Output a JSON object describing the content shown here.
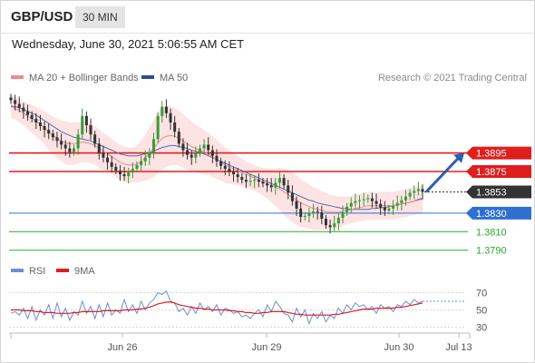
{
  "header": {
    "symbol": "GBP/USD",
    "timeframe": "30 MIN",
    "datetime": "Wednesday, June 30, 2021 5:06:55 AM CET"
  },
  "legend": {
    "bollinger_label": "MA 20 + Bollinger Bands",
    "ma50_label": "MA 50",
    "credit": "Research © 2021 Trading Central"
  },
  "rsi_legend": {
    "rsi_label": "RSI",
    "ma_label": "9MA"
  },
  "colors": {
    "resistance": "#e01e1e",
    "pivot": "#2f6fd1",
    "support": "#2ea82e",
    "current": "#333333",
    "candle_up": "#3a9a3a",
    "candle_down": "#333333",
    "bollinger_fill": "#fde0e0",
    "ma20": "#f08a8a",
    "ma50": "#4a6fb5",
    "arrow": "#2b5fb0",
    "rsi": "#6b8fd6",
    "rsi_ma": "#e01e1e"
  },
  "chart_data": [
    {
      "type": "candlestick",
      "ylim": [
        1.3775,
        1.3975
      ],
      "x_ticks": [
        "Jun 26",
        "Jun 29",
        "Jun 30",
        "Jul 13"
      ],
      "levels": [
        {
          "value": 1.3895,
          "label": "1.3895",
          "kind": "resistance"
        },
        {
          "value": 1.3875,
          "label": "1.3875",
          "kind": "resistance"
        },
        {
          "value": 1.3853,
          "label": "1.3853",
          "kind": "current"
        },
        {
          "value": 1.383,
          "label": "1.3830",
          "kind": "pivot"
        },
        {
          "value": 1.381,
          "label": "1.3810",
          "kind": "support"
        },
        {
          "value": 1.379,
          "label": "1.3790",
          "kind": "support"
        }
      ],
      "close": [
        1.3952,
        1.3948,
        1.3944,
        1.394,
        1.3936,
        1.3932,
        1.3928,
        1.3924,
        1.392,
        1.3916,
        1.3912,
        1.3908,
        1.3904,
        1.39,
        1.3896,
        1.39,
        1.3915,
        1.3935,
        1.3925,
        1.3915,
        1.3905,
        1.3895,
        1.389,
        1.3885,
        1.388,
        1.3876,
        1.3872,
        1.387,
        1.3874,
        1.3878,
        1.3882,
        1.3886,
        1.389,
        1.3895,
        1.391,
        1.3935,
        1.3945,
        1.3938,
        1.3928,
        1.3918,
        1.3905,
        1.3898,
        1.3893,
        1.389,
        1.3895,
        1.39,
        1.3904,
        1.3898,
        1.3892,
        1.3886,
        1.3881,
        1.3878,
        1.3875,
        1.3872,
        1.3869,
        1.3866,
        1.3864,
        1.3865,
        1.3866,
        1.3864,
        1.3862,
        1.386,
        1.3858,
        1.3863,
        1.3868,
        1.386,
        1.3852,
        1.3843,
        1.3835,
        1.3826,
        1.3827,
        1.383,
        1.3832,
        1.3831,
        1.3824,
        1.3817,
        1.3815,
        1.3819,
        1.3825,
        1.3831,
        1.3837,
        1.3841,
        1.3843,
        1.3844,
        1.3845,
        1.3846,
        1.3843,
        1.384,
        1.3836,
        1.3833,
        1.3835,
        1.3838,
        1.3841,
        1.3844,
        1.3848,
        1.3852,
        1.3854,
        1.3856,
        1.3853
      ],
      "ma20": [
        1.3945,
        1.3943,
        1.3941,
        1.3938,
        1.3935,
        1.3932,
        1.3929,
        1.3926,
        1.3922,
        1.3918,
        1.3914,
        1.3911,
        1.3908,
        1.3906,
        1.3905,
        1.3905,
        1.3906,
        1.3907,
        1.3906,
        1.3905,
        1.3903,
        1.39,
        1.3897,
        1.3894,
        1.3891,
        1.3888,
        1.3885,
        1.3883,
        1.3882,
        1.3882,
        1.3883,
        1.3886,
        1.389,
        1.3895,
        1.39,
        1.3906,
        1.3911,
        1.3913,
        1.3914,
        1.3913,
        1.3911,
        1.3908,
        1.3905,
        1.3902,
        1.39,
        1.3898,
        1.3896,
        1.3894,
        1.3891,
        1.3888,
        1.3885,
        1.3882,
        1.388,
        1.3878,
        1.3876,
        1.3874,
        1.3872,
        1.387,
        1.3868,
        1.3866,
        1.3864,
        1.3862,
        1.386,
        1.3858,
        1.3856,
        1.3853,
        1.385,
        1.3847,
        1.3844,
        1.3841,
        1.3839,
        1.3837,
        1.3835,
        1.3834,
        1.3833,
        1.3832,
        1.3831,
        1.3831,
        1.3831,
        1.3832,
        1.3833,
        1.3834,
        1.3835,
        1.3836,
        1.3837,
        1.3838,
        1.3838,
        1.3838,
        1.3838,
        1.3838,
        1.3838,
        1.3838,
        1.3839,
        1.384,
        1.3841,
        1.3842,
        1.3843,
        1.3844,
        1.3845
      ],
      "bb_width": [
        0.0012,
        0.0012,
        0.0013,
        0.0013,
        0.0014,
        0.0015,
        0.0016,
        0.0017,
        0.0018,
        0.0019,
        0.002,
        0.0021,
        0.0022,
        0.0023,
        0.0023,
        0.0023,
        0.0022,
        0.0022,
        0.0021,
        0.0021,
        0.0021,
        0.0021,
        0.002,
        0.002,
        0.0019,
        0.0019,
        0.0019,
        0.0019,
        0.0019,
        0.0019,
        0.002,
        0.0022,
        0.0025,
        0.0028,
        0.0031,
        0.0033,
        0.0034,
        0.0033,
        0.0032,
        0.0031,
        0.003,
        0.0029,
        0.0028,
        0.0027,
        0.0026,
        0.0025,
        0.0024,
        0.0023,
        0.0022,
        0.0021,
        0.002,
        0.0019,
        0.0018,
        0.0017,
        0.0016,
        0.0015,
        0.0014,
        0.0014,
        0.0014,
        0.0014,
        0.0015,
        0.0016,
        0.0018,
        0.002,
        0.0023,
        0.0025,
        0.0026,
        0.0027,
        0.0027,
        0.0026,
        0.0025,
        0.0024,
        0.0023,
        0.0022,
        0.0021,
        0.002,
        0.0019,
        0.0018,
        0.0017,
        0.0016,
        0.0015,
        0.0015,
        0.0015,
        0.0015,
        0.0015,
        0.0015,
        0.0015,
        0.0015,
        0.0015,
        0.0015,
        0.0015,
        0.0015,
        0.0015,
        0.0015,
        0.0015,
        0.0015,
        0.0015,
        0.0015,
        0.0015
      ],
      "ma50": [
        1.3946,
        1.3945,
        1.3944,
        1.3942,
        1.394,
        1.3938,
        1.3936,
        1.3933,
        1.393,
        1.3927,
        1.3924,
        1.3921,
        1.3918,
        1.3916,
        1.3914,
        1.3912,
        1.3911,
        1.391,
        1.3909,
        1.3908,
        1.3906,
        1.3904,
        1.3902,
        1.39,
        1.3898,
        1.3896,
        1.3894,
        1.3893,
        1.3892,
        1.3892,
        1.3892,
        1.3893,
        1.3894,
        1.3895,
        1.3897,
        1.3899,
        1.3901,
        1.3902,
        1.3903,
        1.3903,
        1.3902,
        1.3901,
        1.39,
        1.3898,
        1.3897,
        1.3896,
        1.3894,
        1.3892,
        1.389,
        1.3888,
        1.3886,
        1.3884,
        1.3882,
        1.388,
        1.3878,
        1.3876,
        1.3874,
        1.3872,
        1.387,
        1.3868,
        1.3866,
        1.3864,
        1.3862,
        1.386,
        1.3858,
        1.3856,
        1.3854,
        1.3852,
        1.385,
        1.3848,
        1.3846,
        1.3844,
        1.3843,
        1.3841,
        1.384,
        1.3839,
        1.3838,
        1.3837,
        1.3836,
        1.3835,
        1.3835,
        1.3834,
        1.3834,
        1.3834,
        1.3834,
        1.3834,
        1.3835,
        1.3835,
        1.3836,
        1.3836,
        1.3837,
        1.3838,
        1.3839,
        1.384,
        1.3841,
        1.3842,
        1.3843,
        1.3845,
        1.3846
      ],
      "forecast": {
        "from": 1.3853,
        "to": 1.3895
      }
    },
    {
      "type": "line",
      "name": "RSI",
      "ylim": [
        20,
        80
      ],
      "y_ticks": [
        70,
        50,
        30
      ],
      "rsi": [
        46,
        48,
        44,
        52,
        40,
        54,
        38,
        50,
        44,
        56,
        40,
        58,
        42,
        52,
        38,
        48,
        44,
        60,
        46,
        54,
        40,
        56,
        42,
        58,
        44,
        50,
        46,
        62,
        48,
        56,
        46,
        60,
        50,
        58,
        62,
        70,
        68,
        72,
        60,
        58,
        48,
        52,
        44,
        54,
        46,
        58,
        50,
        54,
        48,
        56,
        44,
        52,
        50,
        46,
        48,
        42,
        44,
        40,
        46,
        50,
        42,
        56,
        48,
        60,
        54,
        46,
        44,
        36,
        52,
        42,
        50,
        34,
        46,
        40,
        48,
        36,
        44,
        40,
        52,
        46,
        56,
        50,
        58,
        54,
        56,
        50,
        54,
        46,
        56,
        52,
        54,
        48,
        56,
        54,
        60,
        56,
        62,
        58,
        60
      ],
      "rsi_ma": [
        50,
        50,
        50,
        49,
        49,
        49,
        48,
        48,
        47,
        47,
        47,
        46,
        46,
        46,
        46,
        47,
        47,
        48,
        48,
        48,
        48,
        48,
        49,
        49,
        49,
        49,
        49,
        50,
        50,
        50,
        51,
        51,
        52,
        53,
        55,
        57,
        58,
        59,
        59,
        58,
        56,
        55,
        54,
        53,
        52,
        52,
        51,
        51,
        50,
        50,
        50,
        50,
        49,
        49,
        48,
        48,
        47,
        47,
        46,
        46,
        47,
        47,
        48,
        48,
        48,
        48,
        47,
        46,
        45,
        45,
        44,
        44,
        44,
        44,
        44,
        44,
        44,
        45,
        45,
        46,
        47,
        48,
        49,
        50,
        51,
        51,
        51,
        52,
        52,
        52,
        52,
        52,
        53,
        53,
        54,
        55,
        56,
        57,
        58
      ]
    }
  ]
}
